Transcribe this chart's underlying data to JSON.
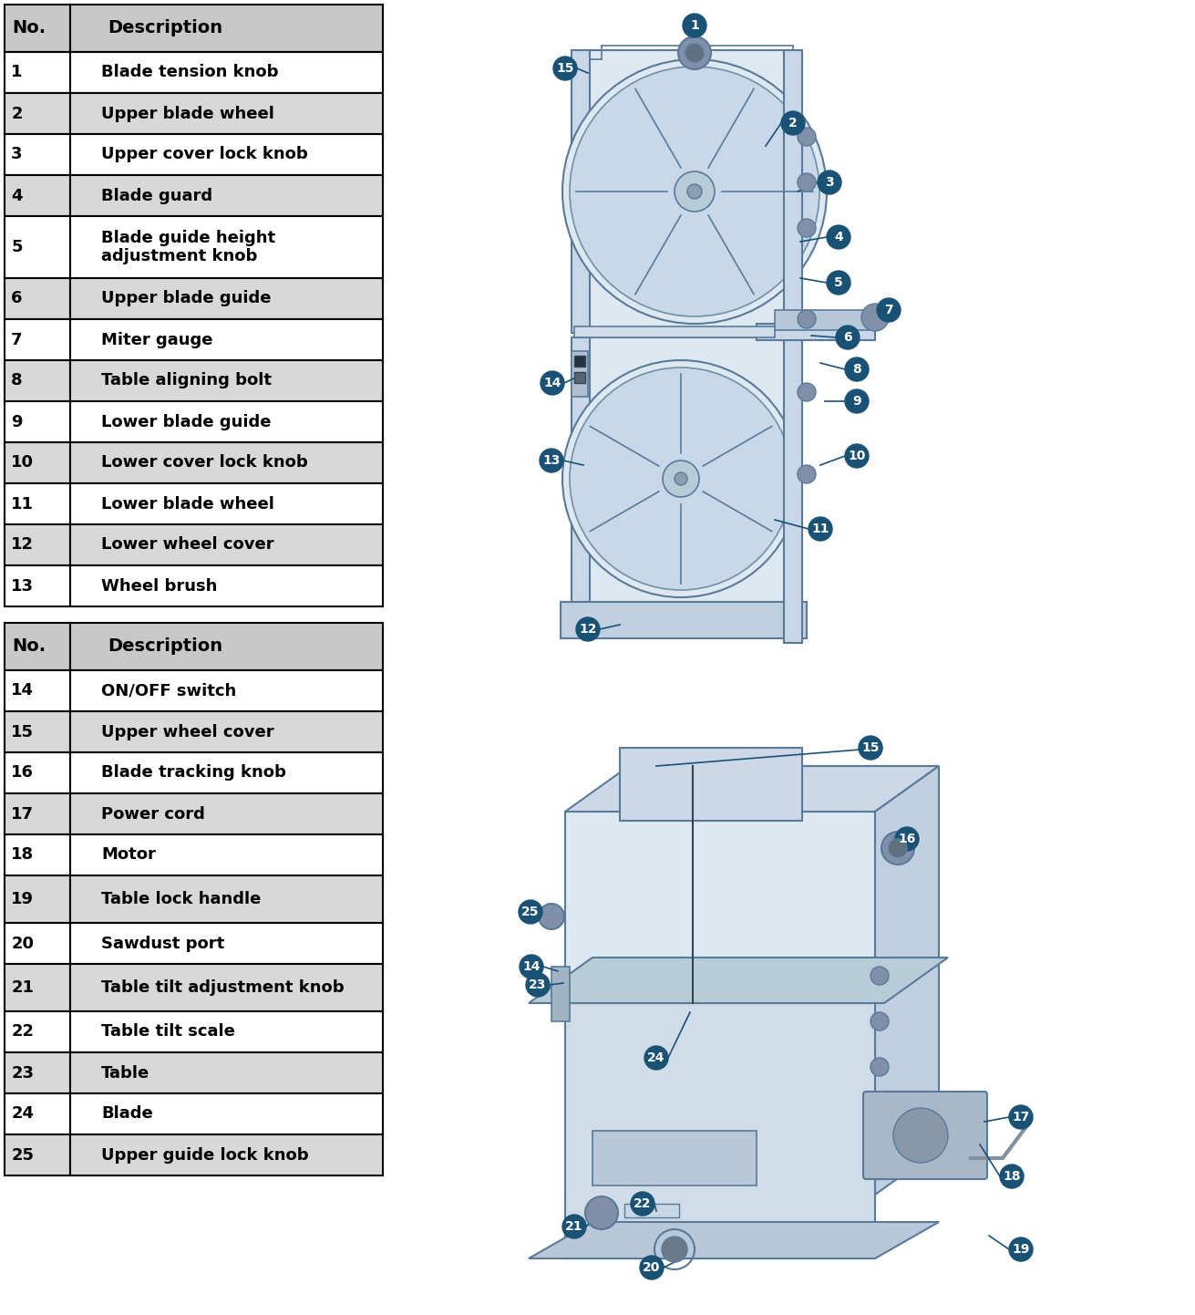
{
  "table1_rows": [
    [
      "1",
      "Blade tension knob"
    ],
    [
      "2",
      "Upper blade wheel"
    ],
    [
      "3",
      "Upper cover lock knob"
    ],
    [
      "4",
      "Blade guard"
    ],
    [
      "5",
      "Blade guide height\nadjustment knob"
    ],
    [
      "6",
      "Upper blade guide"
    ],
    [
      "7",
      "Miter gauge"
    ],
    [
      "8",
      "Table aligning bolt"
    ],
    [
      "9",
      "Lower blade guide"
    ],
    [
      "10",
      "Lower cover lock knob"
    ],
    [
      "11",
      "Lower blade wheel"
    ],
    [
      "12",
      "Lower wheel cover"
    ],
    [
      "13",
      "Wheel brush"
    ]
  ],
  "table2_rows": [
    [
      "14",
      "ON/OFF switch"
    ],
    [
      "15",
      "Upper wheel cover"
    ],
    [
      "16",
      "Blade tracking knob"
    ],
    [
      "17",
      "Power cord"
    ],
    [
      "18",
      "Motor"
    ],
    [
      "19",
      "Table lock handle"
    ],
    [
      "20",
      "Sawdust port"
    ],
    [
      "21",
      "Table tilt adjustment knob"
    ],
    [
      "22",
      "Table tilt scale"
    ],
    [
      "23",
      "Table"
    ],
    [
      "24",
      "Blade"
    ],
    [
      "25",
      "Upper guide lock knob"
    ]
  ],
  "header": [
    "No.",
    "Description"
  ],
  "header_bg": "#c8c8c8",
  "odd_bg": "#ffffff",
  "even_bg": "#d8d8d8",
  "border_color": "#000000",
  "text_color": "#000000",
  "badge_color": "#1a5276",
  "badge_text_color": "#ffffff"
}
